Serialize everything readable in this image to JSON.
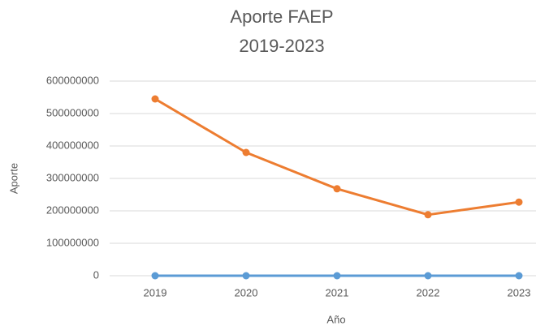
{
  "chart_data": {
    "type": "line",
    "title": "Aporte FAEP",
    "subtitle": "2019-2023",
    "x_label": "Año",
    "y_label": "Aporte",
    "categories": [
      "2019",
      "2020",
      "2021",
      "2022",
      "2023"
    ],
    "series": [
      {
        "color": "#5b9bd5",
        "values": [
          0,
          0,
          0,
          0,
          0
        ]
      },
      {
        "color": "#ed7d31",
        "values": [
          545000000,
          380000000,
          268000000,
          188000000,
          227000000
        ]
      }
    ],
    "ylim": [
      0,
      600000000
    ],
    "yticks": [
      0,
      100000000,
      200000000,
      300000000,
      400000000,
      500000000,
      600000000
    ],
    "grid": true
  }
}
